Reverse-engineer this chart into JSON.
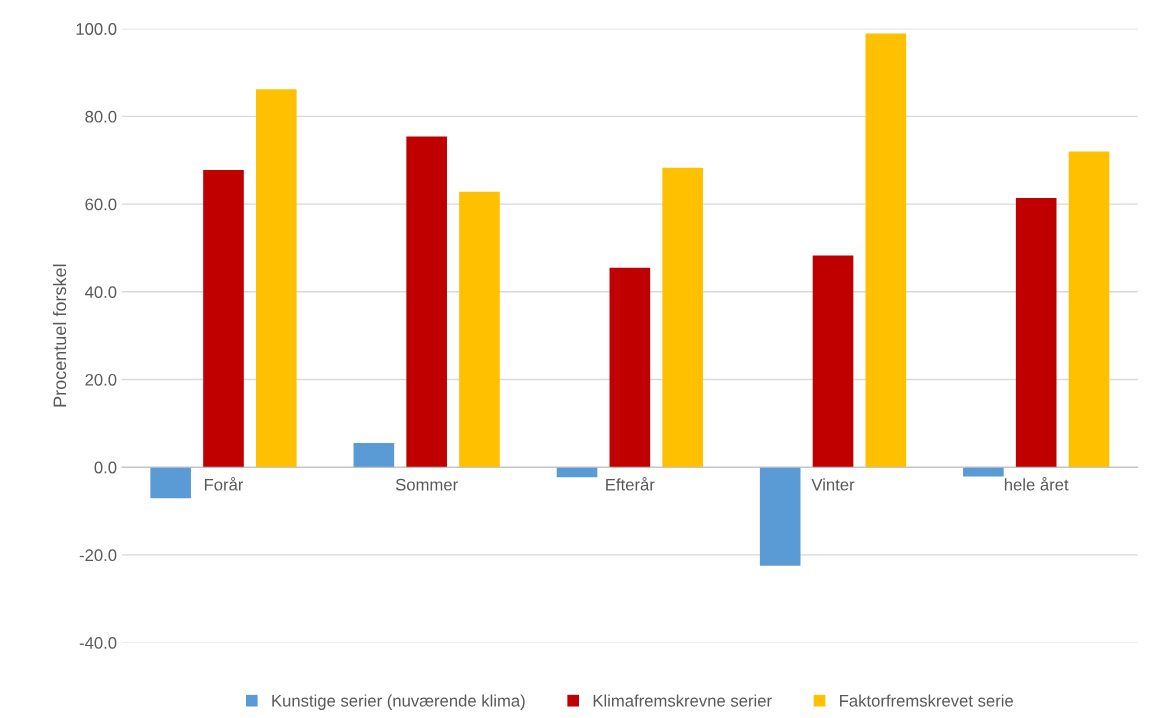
{
  "chart_data": {
    "type": "bar",
    "ylabel": "Procentuel forskel",
    "categories": [
      "Forår",
      "Sommer",
      "Efterår",
      "Vinter",
      "hele året"
    ],
    "series": [
      {
        "name": "Kunstige serier (nuværende klima)",
        "color": "#5b9bd5",
        "values": [
          -7.1,
          5.5,
          -2.3,
          -22.5,
          -2.1
        ]
      },
      {
        "name": "Klimafremskrevne serier",
        "color": "#c00000",
        "values": [
          67.8,
          75.4,
          45.5,
          48.3,
          61.4
        ]
      },
      {
        "name": "Faktorfremskrevet serie",
        "color": "#ffc000",
        "values": [
          86.2,
          62.8,
          68.3,
          98.9,
          72.0
        ]
      }
    ],
    "ylim": [
      -40,
      100
    ],
    "yticks": [
      {
        "value": -40,
        "label": "-40.0"
      },
      {
        "value": -20,
        "label": "-20.0"
      },
      {
        "value": 0,
        "label": "0.0"
      },
      {
        "value": 20,
        "label": "20.0"
      },
      {
        "value": 40,
        "label": "40.0"
      },
      {
        "value": 60,
        "label": "60.0"
      },
      {
        "value": 80,
        "label": "80.0"
      },
      {
        "value": 100,
        "label": "100.0"
      }
    ],
    "grid": "y",
    "legend": "bottom"
  }
}
